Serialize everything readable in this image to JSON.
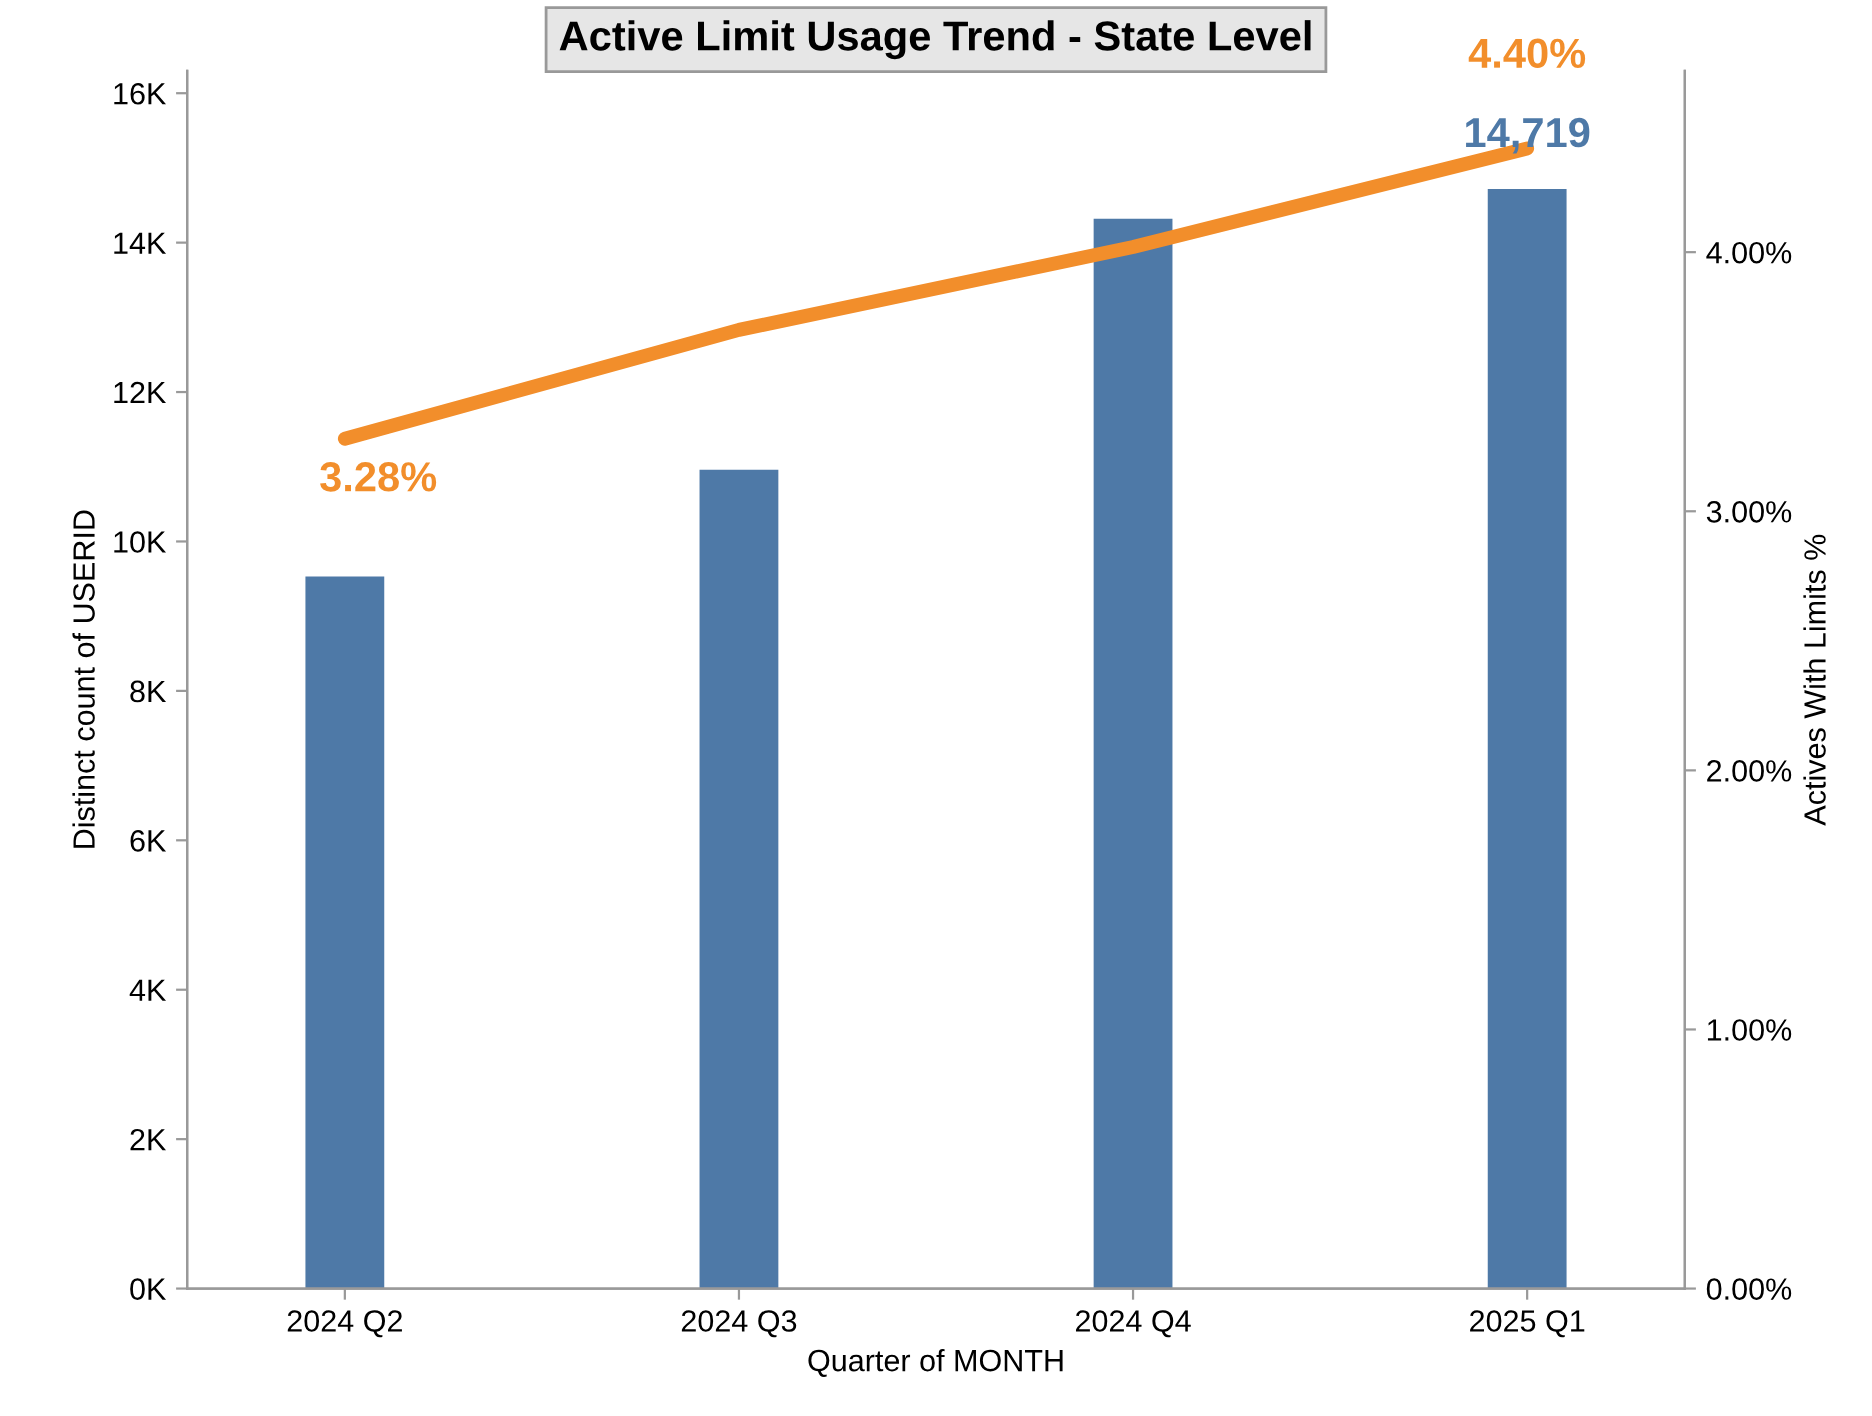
{
  "chart_data": {
    "type": "bar",
    "title": "Active Limit Usage Trend - State Level",
    "xlabel": "Quarter of MONTH",
    "ylabel": "Distinct count of USERID",
    "y2label": "Actives With Limits %",
    "categories": [
      "2024 Q2",
      "2024 Q3",
      "2024 Q4",
      "2025 Q1"
    ],
    "series": [
      {
        "color": "#4e79a7",
        "values": [
          9530,
          10960,
          14320,
          14719
        ],
        "value_labels": [
          null,
          null,
          null,
          "14,719"
        ]
      },
      {
        "type": "line",
        "axis": "y2",
        "color": "#f28e2b",
        "values": [
          3.28,
          3.7,
          4.02,
          4.4
        ],
        "value_labels": [
          "3.28%",
          null,
          null,
          "4.40%"
        ],
        "marker": "none",
        "line_style": "solid"
      }
    ],
    "ylim": [
      0,
      16300
    ],
    "yticks": [
      {
        "value": 0,
        "label": "0K"
      },
      {
        "value": 2000,
        "label": "2K"
      },
      {
        "value": 4000,
        "label": "4K"
      },
      {
        "value": 6000,
        "label": "6K"
      },
      {
        "value": 8000,
        "label": "8K"
      },
      {
        "value": 10000,
        "label": "10K"
      },
      {
        "value": 12000,
        "label": "12K"
      },
      {
        "value": 14000,
        "label": "14K"
      },
      {
        "value": 16000,
        "label": "16K"
      }
    ],
    "y2lim": [
      0,
      4.7
    ],
    "y2ticks": [
      {
        "value": 0,
        "label": "0.00%"
      },
      {
        "value": 1,
        "label": "1.00%"
      },
      {
        "value": 2,
        "label": "2.00%"
      },
      {
        "value": 3,
        "label": "3.00%"
      },
      {
        "value": 4,
        "label": "4.00%"
      }
    ],
    "grid": false,
    "legend": false
  }
}
